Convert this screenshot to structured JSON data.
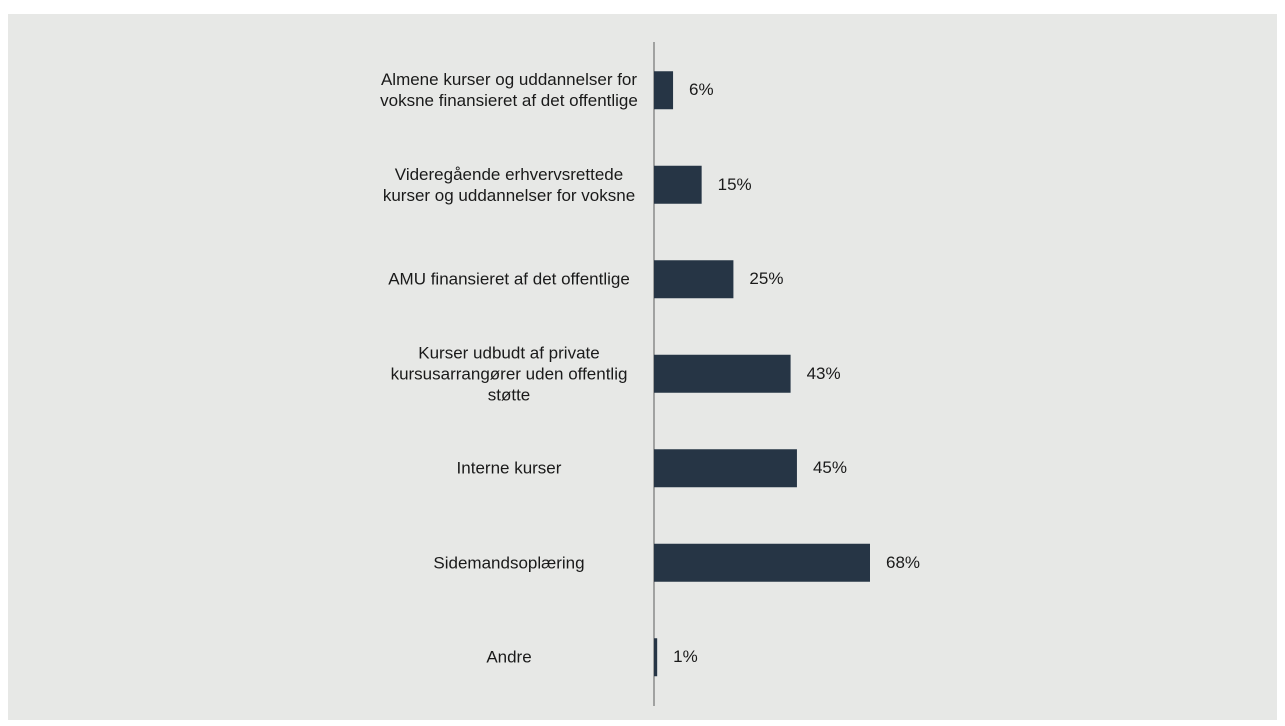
{
  "chart_data": {
    "type": "barh",
    "categories": [
      "Almene kurser og uddannelser for voksne finansieret af det offentlige",
      "Videregående erhvervsrettede kurser og uddannelser for voksne",
      "AMU finansieret af det offentlige",
      "Kurser udbudt af private kursusarrangører uden offentlig støtte",
      "Interne kurser",
      "Sidemandsoplæring",
      "Andre"
    ],
    "values": [
      6,
      15,
      25,
      43,
      45,
      68,
      1
    ],
    "value_labels": [
      "6%",
      "15%",
      "25%",
      "43%",
      "45%",
      "68%",
      "1%"
    ],
    "color": "#263545"
  }
}
